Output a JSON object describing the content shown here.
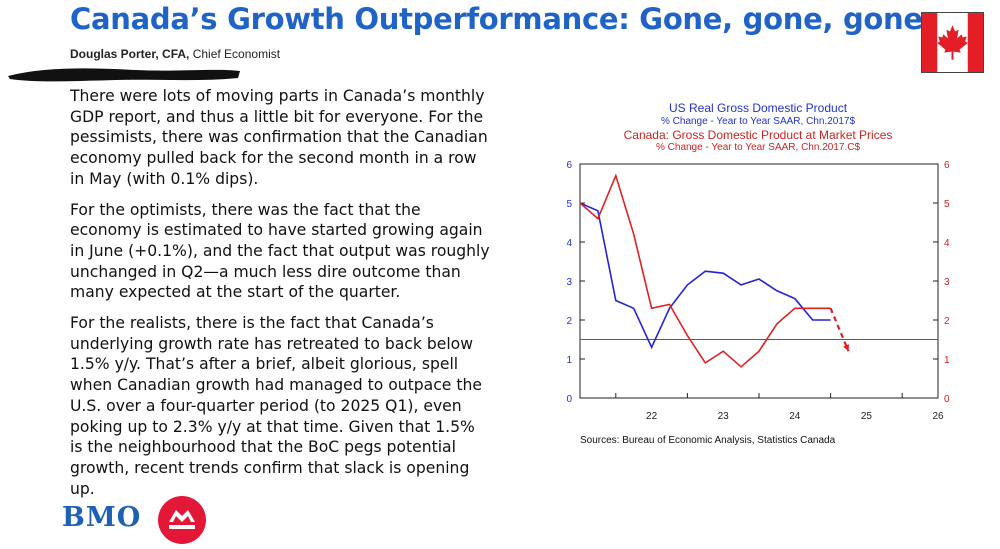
{
  "header": {
    "title": "Canada’s Growth Outperformance: Gone, gone, gone",
    "author_name": "Douglas Porter, CFA,",
    "author_role": "Chief Economist"
  },
  "body": {
    "paragraphs": [
      "There were lots of moving parts in Canada’s monthly GDP report, and thus a little bit for everyone. For the pessimists, there was confirmation that the Canadian economy pulled back for the second month in a row in May (with 0.1% dips).",
      "For the optimists, there was the fact that the economy is estimated to have started growing again in June (+0.1%), and the fact that output was roughly unchanged in Q2—a much less dire outcome than many expected at the start of the quarter.",
      "For the realists, there is the fact that Canada’s underlying growth rate has retreated to back below 1.5% y/y. That’s after a brief, albeit glorious, spell when Canadian growth had managed to outpace the U.S. over a four-quarter period (to 2025 Q1), even poking up to 2.3% y/y at that time. Given that 1.5% is the neighbourhood that the BoC pegs potential growth, recent trends confirm that slack is opening up."
    ]
  },
  "logo": {
    "text": "BMO"
  },
  "colors": {
    "title": "#1f63c6",
    "us_series": "#2222dd",
    "canada_series": "#dd2222",
    "flag_red": "#e31e26"
  },
  "chart_data": {
    "type": "line",
    "titles": [
      "US Real Gross Domestic Product",
      "% Change - Year to Year   SAAR, Chn.2017$",
      "Canada: Gross Domestic Product at Market Prices",
      "% Change - Year to Year   SAAR, Chn.2017.C$"
    ],
    "source": "Sources:  Bureau of Economic Analysis, Statistics Canada",
    "x_ticks": [
      "22",
      "23",
      "24",
      "25",
      "26"
    ],
    "x_range": [
      2021.5,
      2026.5
    ],
    "y_range": [
      0,
      6
    ],
    "y_ticks": [
      "0",
      "1",
      "2",
      "3",
      "4",
      "5",
      "6"
    ],
    "reference_line": 1.5,
    "series": [
      {
        "name": "US Real Gross Domestic Product",
        "axis": "left",
        "x": [
          2021.5,
          2021.75,
          2022.0,
          2022.25,
          2022.5,
          2022.75,
          2023.0,
          2023.25,
          2023.5,
          2023.75,
          2024.0,
          2024.25,
          2024.5,
          2024.75,
          2025.0
        ],
        "values": [
          5.0,
          4.8,
          2.5,
          2.3,
          1.3,
          2.3,
          2.9,
          3.25,
          3.2,
          2.9,
          3.05,
          2.75,
          2.55,
          2.0,
          2.0
        ]
      },
      {
        "name": "Canada: Gross Domestic Product at Market Prices",
        "axis": "right",
        "x": [
          2021.5,
          2021.75,
          2022.0,
          2022.25,
          2022.5,
          2022.75,
          2023.0,
          2023.25,
          2023.5,
          2023.75,
          2024.0,
          2024.25,
          2024.5,
          2024.75,
          2025.0
        ],
        "values": [
          5.0,
          4.6,
          5.7,
          4.2,
          2.3,
          2.4,
          1.6,
          0.9,
          1.2,
          0.8,
          1.2,
          1.9,
          2.3,
          2.3,
          2.3
        ]
      },
      {
        "name": "Canada recent trend (dashed)",
        "axis": "right",
        "x": [
          2025.0,
          2025.25
        ],
        "values": [
          2.3,
          1.2
        ]
      }
    ]
  }
}
